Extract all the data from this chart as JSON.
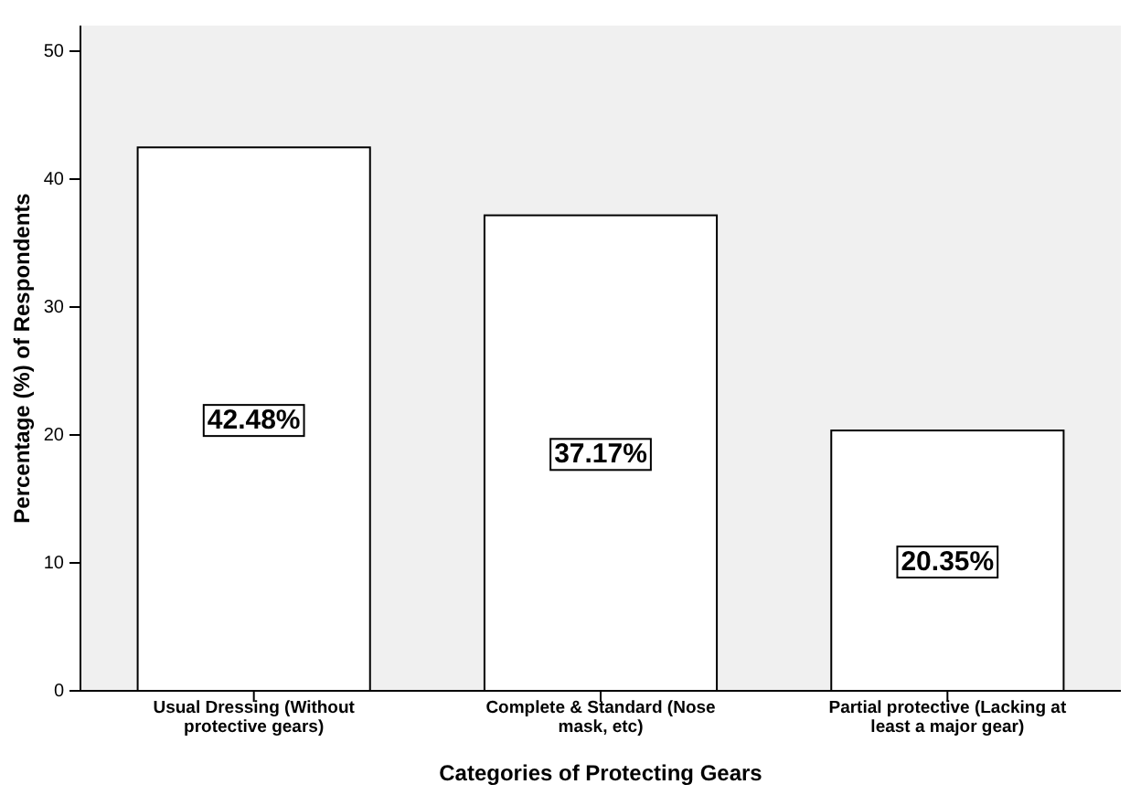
{
  "chart_data": {
    "type": "bar",
    "xlabel": "Categories of Protecting Gears",
    "ylabel": "Percentage (%) of Respondents",
    "categories": [
      "Usual Dressing (Without protective gears)",
      "Complete & Standard (Nose mask, etc)",
      "Partial protective (Lacking at least a major gear)"
    ],
    "values": [
      42.48,
      37.17,
      20.35
    ],
    "value_labels": [
      "42.48%",
      "37.17%",
      "20.35%"
    ],
    "color": "#ffffff",
    "ylim": [
      0,
      52
    ],
    "yticks": [
      0,
      10,
      20,
      30,
      40,
      50
    ],
    "grid": false
  }
}
